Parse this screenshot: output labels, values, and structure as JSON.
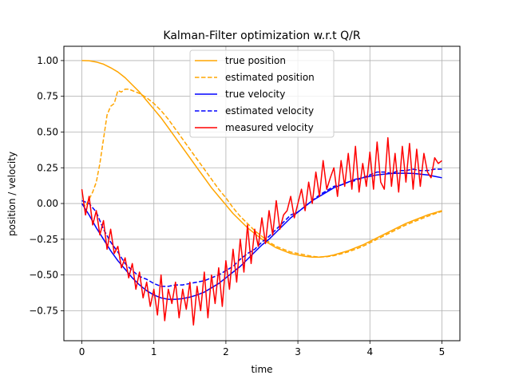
{
  "chart_data": {
    "type": "line",
    "title": "Kalman-Filter optimization w.r.t Q/R",
    "xlabel": "time",
    "ylabel": "position / velocity",
    "xlim": [
      -0.25,
      5.25
    ],
    "ylim": [
      -0.96,
      1.1
    ],
    "xticks": [
      0,
      1,
      2,
      3,
      4,
      5
    ],
    "xtick_labels": [
      "0",
      "1",
      "2",
      "3",
      "4",
      "5"
    ],
    "yticks": [
      -0.75,
      -0.5,
      -0.25,
      0.0,
      0.25,
      0.5,
      0.75,
      1.0
    ],
    "ytick_labels": [
      "−0.75",
      "−0.50",
      "−0.25",
      "0.00",
      "0.25",
      "0.50",
      "0.75",
      "1.00"
    ],
    "grid": true,
    "legend_position": "top-center",
    "series": [
      {
        "name": "true position",
        "color": "#ffa500",
        "dash": "solid",
        "x": [
          0,
          0.1,
          0.2,
          0.3,
          0.4,
          0.5,
          0.6,
          0.7,
          0.8,
          0.9,
          1.0,
          1.1,
          1.2,
          1.3,
          1.4,
          1.5,
          1.6,
          1.7,
          1.8,
          1.9,
          2.0,
          2.1,
          2.2,
          2.3,
          2.4,
          2.5,
          2.6,
          2.7,
          2.8,
          2.9,
          3.0,
          3.1,
          3.2,
          3.3,
          3.4,
          3.5,
          3.6,
          3.7,
          3.8,
          3.9,
          4.0,
          4.1,
          4.2,
          4.3,
          4.4,
          4.5,
          4.6,
          4.7,
          4.8,
          4.9,
          5.0
        ],
        "y": [
          1.0,
          0.999,
          0.99,
          0.975,
          0.95,
          0.92,
          0.88,
          0.83,
          0.78,
          0.72,
          0.66,
          0.6,
          0.53,
          0.46,
          0.39,
          0.32,
          0.25,
          0.18,
          0.11,
          0.05,
          -0.01,
          -0.07,
          -0.12,
          -0.17,
          -0.21,
          -0.25,
          -0.28,
          -0.31,
          -0.33,
          -0.35,
          -0.36,
          -0.37,
          -0.375,
          -0.375,
          -0.37,
          -0.36,
          -0.345,
          -0.33,
          -0.31,
          -0.29,
          -0.265,
          -0.24,
          -0.215,
          -0.19,
          -0.165,
          -0.14,
          -0.12,
          -0.1,
          -0.08,
          -0.065,
          -0.05
        ]
      },
      {
        "name": "estimated position",
        "color": "#ffa500",
        "dash": "dashed",
        "x": [
          0,
          0.05,
          0.1,
          0.15,
          0.2,
          0.25,
          0.3,
          0.35,
          0.4,
          0.45,
          0.5,
          0.55,
          0.6,
          0.65,
          0.7,
          0.8,
          0.9,
          1.0,
          1.1,
          1.2,
          1.3,
          1.4,
          1.5,
          1.6,
          1.7,
          1.8,
          1.9,
          2.0,
          2.1,
          2.2,
          2.3,
          2.4,
          2.5,
          2.6,
          2.7,
          2.8,
          2.9,
          3.0,
          3.1,
          3.2,
          3.3,
          3.4,
          3.5,
          3.6,
          3.7,
          3.8,
          3.9,
          4.0,
          4.1,
          4.2,
          4.3,
          4.4,
          4.5,
          4.6,
          4.7,
          4.8,
          4.9,
          5.0
        ],
        "y": [
          0.0,
          -0.02,
          0.03,
          0.08,
          0.15,
          0.28,
          0.45,
          0.62,
          0.68,
          0.7,
          0.79,
          0.78,
          0.8,
          0.8,
          0.79,
          0.77,
          0.74,
          0.7,
          0.65,
          0.59,
          0.52,
          0.45,
          0.38,
          0.31,
          0.24,
          0.17,
          0.1,
          0.04,
          -0.03,
          -0.09,
          -0.14,
          -0.19,
          -0.23,
          -0.27,
          -0.3,
          -0.32,
          -0.34,
          -0.35,
          -0.36,
          -0.37,
          -0.375,
          -0.372,
          -0.365,
          -0.352,
          -0.338,
          -0.32,
          -0.3,
          -0.275,
          -0.25,
          -0.225,
          -0.2,
          -0.175,
          -0.15,
          -0.13,
          -0.11,
          -0.09,
          -0.072,
          -0.055
        ]
      },
      {
        "name": "true velocity",
        "color": "#0000ff",
        "dash": "solid",
        "x": [
          0,
          0.1,
          0.2,
          0.3,
          0.4,
          0.5,
          0.6,
          0.7,
          0.8,
          0.9,
          1.0,
          1.1,
          1.2,
          1.3,
          1.4,
          1.5,
          1.6,
          1.7,
          1.8,
          1.9,
          2.0,
          2.1,
          2.2,
          2.3,
          2.4,
          2.5,
          2.6,
          2.7,
          2.8,
          2.9,
          3.0,
          3.1,
          3.2,
          3.3,
          3.4,
          3.5,
          3.6,
          3.7,
          3.8,
          3.9,
          4.0,
          4.1,
          4.2,
          4.3,
          4.4,
          4.5,
          4.6,
          4.7,
          4.8,
          4.9,
          5.0
        ],
        "y": [
          0.0,
          -0.08,
          -0.17,
          -0.25,
          -0.33,
          -0.4,
          -0.46,
          -0.52,
          -0.57,
          -0.61,
          -0.64,
          -0.66,
          -0.67,
          -0.67,
          -0.665,
          -0.655,
          -0.64,
          -0.62,
          -0.59,
          -0.56,
          -0.52,
          -0.48,
          -0.44,
          -0.39,
          -0.34,
          -0.29,
          -0.25,
          -0.2,
          -0.15,
          -0.1,
          -0.06,
          -0.02,
          0.02,
          0.05,
          0.08,
          0.11,
          0.13,
          0.15,
          0.17,
          0.18,
          0.19,
          0.2,
          0.205,
          0.21,
          0.212,
          0.212,
          0.21,
          0.205,
          0.2,
          0.19,
          0.18
        ]
      },
      {
        "name": "estimated velocity",
        "color": "#0000ff",
        "dash": "dashed",
        "x": [
          0,
          0.1,
          0.2,
          0.3,
          0.4,
          0.5,
          0.6,
          0.7,
          0.8,
          0.9,
          1.0,
          1.1,
          1.2,
          1.3,
          1.4,
          1.5,
          1.6,
          1.7,
          1.8,
          1.9,
          2.0,
          2.1,
          2.2,
          2.3,
          2.4,
          2.5,
          2.6,
          2.7,
          2.8,
          2.9,
          3.0,
          3.1,
          3.2,
          3.3,
          3.4,
          3.5,
          3.6,
          3.7,
          3.8,
          3.9,
          4.0,
          4.1,
          4.2,
          4.3,
          4.4,
          4.5,
          4.6,
          4.7,
          4.8,
          4.9,
          5.0
        ],
        "y": [
          0.02,
          0.0,
          -0.06,
          -0.18,
          -0.27,
          -0.34,
          -0.42,
          -0.47,
          -0.51,
          -0.53,
          -0.56,
          -0.58,
          -0.58,
          -0.57,
          -0.57,
          -0.56,
          -0.55,
          -0.54,
          -0.52,
          -0.5,
          -0.47,
          -0.44,
          -0.39,
          -0.35,
          -0.32,
          -0.27,
          -0.23,
          -0.18,
          -0.13,
          -0.08,
          -0.06,
          -0.02,
          0.02,
          0.06,
          0.09,
          0.12,
          0.13,
          0.15,
          0.16,
          0.18,
          0.2,
          0.22,
          0.22,
          0.21,
          0.23,
          0.23,
          0.24,
          0.23,
          0.23,
          0.24,
          0.24
        ]
      },
      {
        "name": "measured velocity",
        "color": "#ff0000",
        "dash": "solid",
        "x": [
          0,
          0.05,
          0.1,
          0.15,
          0.2,
          0.25,
          0.3,
          0.35,
          0.4,
          0.45,
          0.5,
          0.55,
          0.6,
          0.65,
          0.7,
          0.75,
          0.8,
          0.85,
          0.9,
          0.95,
          1.0,
          1.05,
          1.1,
          1.15,
          1.2,
          1.25,
          1.3,
          1.35,
          1.4,
          1.45,
          1.5,
          1.55,
          1.6,
          1.65,
          1.7,
          1.75,
          1.8,
          1.85,
          1.9,
          1.95,
          2.0,
          2.05,
          2.1,
          2.15,
          2.2,
          2.25,
          2.3,
          2.35,
          2.4,
          2.45,
          2.5,
          2.55,
          2.6,
          2.65,
          2.7,
          2.75,
          2.8,
          2.85,
          2.9,
          2.95,
          3.0,
          3.05,
          3.1,
          3.15,
          3.2,
          3.25,
          3.3,
          3.35,
          3.4,
          3.45,
          3.5,
          3.55,
          3.6,
          3.65,
          3.7,
          3.75,
          3.8,
          3.85,
          3.9,
          3.95,
          4.0,
          4.05,
          4.1,
          4.15,
          4.2,
          4.25,
          4.3,
          4.35,
          4.4,
          4.45,
          4.5,
          4.55,
          4.6,
          4.65,
          4.7,
          4.75,
          4.8,
          4.85,
          4.9,
          4.95,
          5.0
        ],
        "y": [
          0.1,
          -0.08,
          0.05,
          -0.15,
          -0.05,
          -0.22,
          -0.12,
          -0.32,
          -0.18,
          -0.35,
          -0.3,
          -0.45,
          -0.38,
          -0.52,
          -0.42,
          -0.6,
          -0.48,
          -0.66,
          -0.55,
          -0.72,
          -0.6,
          -0.78,
          -0.5,
          -0.82,
          -0.6,
          -0.7,
          -0.55,
          -0.8,
          -0.6,
          -0.74,
          -0.55,
          -0.85,
          -0.58,
          -0.75,
          -0.48,
          -0.8,
          -0.5,
          -0.7,
          -0.45,
          -0.72,
          -0.4,
          -0.6,
          -0.32,
          -0.55,
          -0.25,
          -0.48,
          -0.15,
          -0.42,
          -0.18,
          -0.3,
          -0.1,
          -0.28,
          -0.05,
          -0.22,
          0.02,
          -0.18,
          -0.08,
          -0.05,
          0.05,
          -0.1,
          0.0,
          0.1,
          -0.05,
          0.15,
          0.0,
          0.22,
          0.05,
          0.3,
          0.1,
          0.18,
          0.25,
          0.05,
          0.3,
          0.12,
          0.35,
          0.1,
          0.4,
          0.08,
          0.28,
          0.12,
          0.36,
          0.1,
          0.43,
          0.15,
          0.1,
          0.46,
          0.12,
          0.35,
          0.08,
          0.4,
          0.15,
          0.42,
          0.1,
          0.38,
          0.12,
          0.35,
          0.22,
          0.18,
          0.32,
          0.28,
          0.3
        ]
      }
    ]
  }
}
